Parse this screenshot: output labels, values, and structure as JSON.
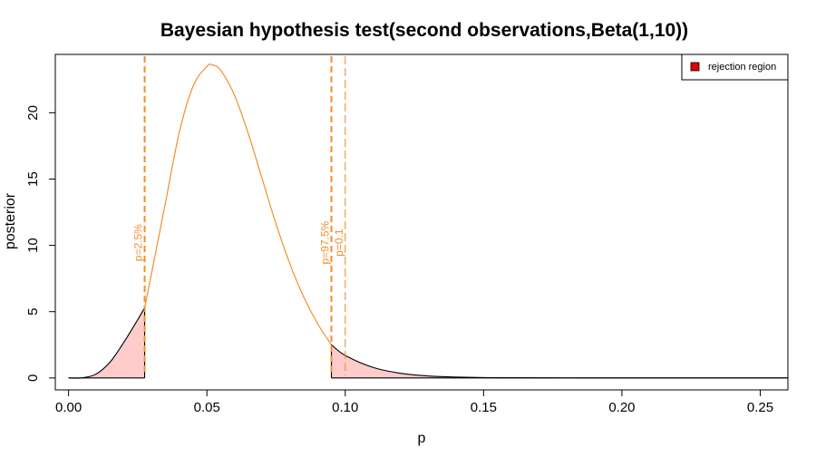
{
  "chart_data": {
    "type": "area",
    "title": "Bayesian hypothesis test(second observations,Beta(1,10))",
    "xlabel": "p",
    "ylabel": "posterior",
    "xlim": [
      -0.0048,
      0.26
    ],
    "ylim": [
      -0.9,
      24.4
    ],
    "xticks": [
      0.0,
      0.05,
      0.1,
      0.15,
      0.2,
      0.25
    ],
    "xtick_labels": [
      "0.00",
      "0.05",
      "0.10",
      "0.15",
      "0.20",
      "0.25"
    ],
    "yticks": [
      0,
      5,
      10,
      15,
      20
    ],
    "ytick_labels": [
      "0",
      "5",
      "10",
      "15",
      "20"
    ],
    "grid": false,
    "posterior": {
      "color": "#f28e2b",
      "x": [
        0.0,
        0.005,
        0.01,
        0.015,
        0.02,
        0.025,
        0.0275,
        0.03,
        0.035,
        0.04,
        0.045,
        0.05,
        0.052,
        0.055,
        0.06,
        0.065,
        0.07,
        0.075,
        0.08,
        0.085,
        0.09,
        0.095,
        0.1,
        0.11,
        0.12,
        0.13,
        0.14,
        0.15,
        0.16,
        0.17,
        0.18,
        0.2,
        0.22,
        0.24,
        0.26
      ],
      "y": [
        0.0,
        0.01,
        0.3,
        1.2,
        2.7,
        4.4,
        5.3,
        7.9,
        13.2,
        18.5,
        22.0,
        23.5,
        23.6,
        23.2,
        21.3,
        18.4,
        15.0,
        11.6,
        8.6,
        6.1,
        4.1,
        2.5,
        1.7,
        0.8,
        0.35,
        0.15,
        0.07,
        0.03,
        0.02,
        0.01,
        0.005,
        0.0,
        0.0,
        0.0,
        0.0
      ]
    },
    "reference_lines": [
      {
        "x": 0.0275,
        "label": "p=2.5%",
        "color": "#f28e2b",
        "style": "dashed-thick"
      },
      {
        "x": 0.095,
        "label": "p=97.5%",
        "color": "#f28e2b",
        "style": "dashed-thick"
      },
      {
        "x": 0.1,
        "label": "p=0.1",
        "color": "#f28e2b",
        "style": "dashed-thin"
      }
    ],
    "rejection_region": {
      "label": "rejection region",
      "fill": "#ffcccc",
      "legend_color": "#dd0000",
      "lower_tail_end": 0.0275,
      "upper_tail_start": 0.095
    },
    "legend_position": "top-right"
  }
}
